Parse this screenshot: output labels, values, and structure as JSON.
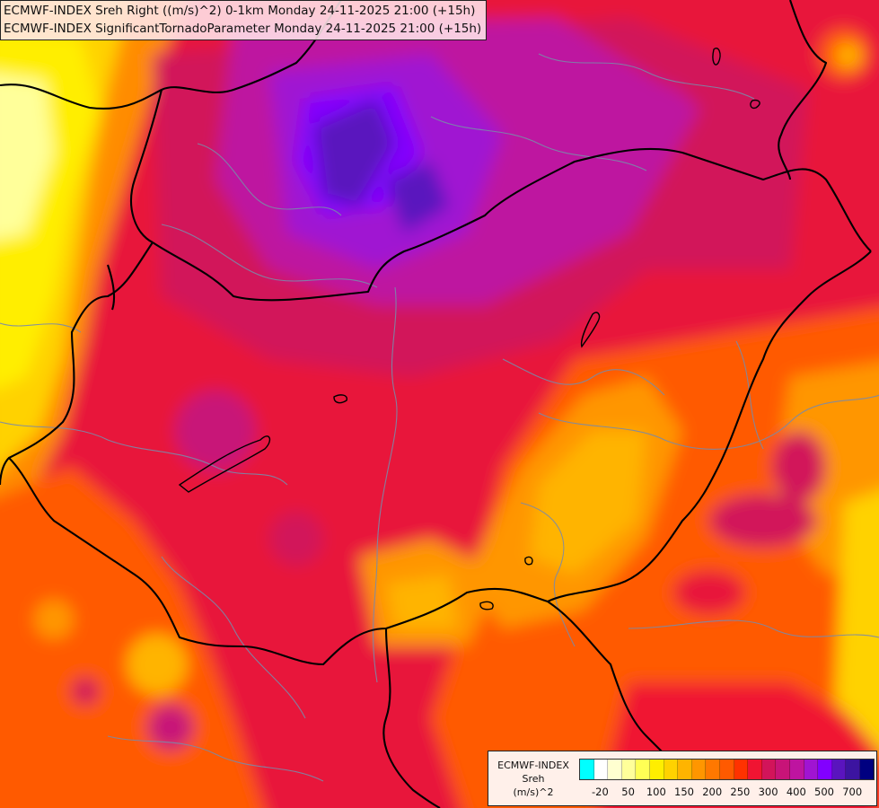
{
  "header": {
    "line1": "ECMWF-INDEX Sreh Right ((m/s)^2) 0-1km Monday 24-11-2025 21:00 (+15h)",
    "line2": "ECMWF-INDEX SignificantTornadoParameter Monday 24-11-2025 21:00 (+15h)"
  },
  "legend": {
    "line1": "ECMWF-INDEX",
    "line2": "Sreh",
    "line3": "(m/s)^2",
    "colors": [
      "#00ffff",
      "#ffffff",
      "#ffffd0",
      "#ffff9a",
      "#ffff55",
      "#ffee00",
      "#ffd200",
      "#ffb400",
      "#ff9600",
      "#ff7800",
      "#ff5a00",
      "#ff3200",
      "#f01432",
      "#d2145a",
      "#c81478",
      "#be14a0",
      "#a014d2",
      "#8200ff",
      "#5a14be",
      "#3c14a0",
      "#000080"
    ],
    "ticks": [
      {
        "label": "-20",
        "index": 1
      },
      {
        "label": "50",
        "index": 3
      },
      {
        "label": "100",
        "index": 5
      },
      {
        "label": "150",
        "index": 7
      },
      {
        "label": "200",
        "index": 9
      },
      {
        "label": "250",
        "index": 11
      },
      {
        "label": "300",
        "index": 13
      },
      {
        "label": "400",
        "index": 15
      },
      {
        "label": "500",
        "index": 17
      },
      {
        "label": "700",
        "index": 19
      }
    ]
  }
}
